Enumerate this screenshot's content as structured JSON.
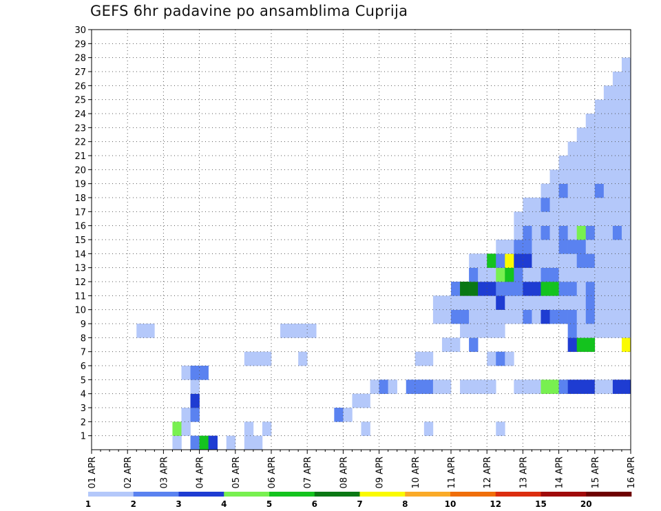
{
  "chart_data": {
    "type": "heatmap",
    "title": "GEFS 6hr padavine po ansamblima Cuprija",
    "xlabel": "",
    "ylabel": "",
    "x_ticks": [
      "01 APR",
      "02 APR",
      "03 APR",
      "04 APR",
      "05 APR",
      "06 APR",
      "07 APR",
      "08 APR",
      "09 APR",
      "10 APR",
      "11 APR",
      "12 APR",
      "13 APR",
      "14 APR",
      "15 APR",
      "16 APR"
    ],
    "y_ticks": [
      1,
      2,
      3,
      4,
      5,
      6,
      7,
      8,
      9,
      10,
      11,
      12,
      13,
      14,
      15,
      16,
      17,
      18,
      19,
      20,
      21,
      22,
      23,
      24,
      25,
      26,
      27,
      28,
      29,
      30
    ],
    "y_range": [
      0,
      30
    ],
    "x_steps_per_day": 4,
    "x_step_count": 60,
    "grid": true,
    "legend": "bottom",
    "levels": [
      1,
      2,
      3,
      4,
      5,
      6,
      7,
      8,
      10,
      12,
      15,
      20
    ],
    "level_labels": [
      "1",
      "2",
      "3",
      "4",
      "5",
      "6",
      "7",
      "8",
      "10",
      "12",
      "15",
      "20"
    ],
    "colors": [
      "#b4c8fa",
      "#5a82f0",
      "#1e3cd2",
      "#78f050",
      "#14c31e",
      "#0a7814",
      "#fafa00",
      "#faaa28",
      "#f06e0a",
      "#dc2d0f",
      "#a00a0a",
      "#6e0000"
    ],
    "cells": [
      [
        9,
        0,
        1
      ],
      [
        11,
        0,
        2
      ],
      [
        12,
        0,
        5
      ],
      [
        13,
        0,
        3
      ],
      [
        15,
        0,
        1
      ],
      [
        17,
        0,
        1
      ],
      [
        18,
        0,
        1
      ],
      [
        9,
        1,
        4
      ],
      [
        10,
        1,
        1
      ],
      [
        10,
        2,
        1
      ],
      [
        11,
        2,
        2
      ],
      [
        11,
        3,
        3
      ],
      [
        11,
        4,
        1
      ],
      [
        17,
        1,
        1
      ],
      [
        19,
        1,
        1
      ],
      [
        30,
        1,
        1
      ],
      [
        37,
        1,
        1
      ],
      [
        45,
        1,
        1
      ],
      [
        27,
        2,
        2
      ],
      [
        28,
        2,
        1
      ],
      [
        29,
        3,
        1
      ],
      [
        30,
        3,
        1
      ],
      [
        31,
        4,
        1
      ],
      [
        32,
        4,
        2
      ],
      [
        33,
        4,
        1
      ],
      [
        35,
        4,
        2
      ],
      [
        36,
        4,
        2
      ],
      [
        37,
        4,
        2
      ],
      [
        38,
        4,
        1
      ],
      [
        39,
        4,
        1
      ],
      [
        41,
        4,
        1
      ],
      [
        42,
        4,
        1
      ],
      [
        43,
        4,
        1
      ],
      [
        44,
        4,
        1
      ],
      [
        47,
        4,
        1
      ],
      [
        48,
        4,
        1
      ],
      [
        49,
        4,
        1
      ],
      [
        50,
        4,
        4
      ],
      [
        51,
        4,
        4
      ],
      [
        52,
        4,
        2
      ],
      [
        53,
        4,
        3
      ],
      [
        54,
        4,
        3
      ],
      [
        55,
        4,
        3
      ],
      [
        56,
        4,
        1
      ],
      [
        57,
        4,
        1
      ],
      [
        58,
        4,
        3
      ],
      [
        59,
        4,
        3
      ],
      [
        10,
        5,
        1
      ],
      [
        11,
        5,
        2
      ],
      [
        12,
        5,
        2
      ],
      [
        17,
        6,
        1
      ],
      [
        18,
        6,
        1
      ],
      [
        19,
        6,
        1
      ],
      [
        23,
        6,
        1
      ],
      [
        36,
        6,
        1
      ],
      [
        37,
        6,
        1
      ],
      [
        44,
        6,
        1
      ],
      [
        45,
        6,
        2
      ],
      [
        46,
        6,
        1
      ],
      [
        39,
        7,
        1
      ],
      [
        40,
        7,
        1
      ],
      [
        42,
        7,
        2
      ],
      [
        53,
        7,
        3
      ],
      [
        54,
        7,
        5
      ],
      [
        55,
        7,
        5
      ],
      [
        59,
        7,
        7
      ],
      [
        5,
        8,
        1
      ],
      [
        6,
        8,
        1
      ],
      [
        21,
        8,
        1
      ],
      [
        22,
        8,
        1
      ],
      [
        23,
        8,
        1
      ],
      [
        24,
        8,
        1
      ],
      [
        41,
        8,
        1
      ],
      [
        42,
        8,
        1
      ],
      [
        43,
        8,
        1
      ],
      [
        44,
        8,
        1
      ],
      [
        45,
        8,
        1
      ],
      [
        53,
        8,
        2
      ],
      [
        54,
        8,
        1
      ],
      [
        55,
        8,
        1
      ],
      [
        56,
        8,
        1
      ],
      [
        57,
        8,
        1
      ],
      [
        58,
        8,
        1
      ],
      [
        59,
        8,
        1
      ],
      [
        38,
        9,
        1
      ],
      [
        39,
        9,
        1
      ],
      [
        40,
        9,
        2
      ],
      [
        41,
        9,
        2
      ],
      [
        42,
        9,
        1
      ],
      [
        43,
        9,
        1
      ],
      [
        44,
        9,
        1
      ],
      [
        45,
        9,
        1
      ],
      [
        46,
        9,
        1
      ],
      [
        47,
        9,
        1
      ],
      [
        48,
        9,
        2
      ],
      [
        49,
        9,
        1
      ],
      [
        50,
        9,
        3
      ],
      [
        51,
        9,
        2
      ],
      [
        52,
        9,
        2
      ],
      [
        53,
        9,
        2
      ],
      [
        54,
        9,
        1
      ],
      [
        55,
        9,
        2
      ],
      [
        56,
        9,
        1
      ],
      [
        57,
        9,
        1
      ],
      [
        58,
        9,
        1
      ],
      [
        59,
        9,
        1
      ],
      [
        38,
        10,
        1
      ],
      [
        39,
        10,
        1
      ],
      [
        40,
        10,
        1
      ],
      [
        41,
        10,
        1
      ],
      [
        42,
        10,
        1
      ],
      [
        43,
        10,
        1
      ],
      [
        44,
        10,
        1
      ],
      [
        45,
        10,
        3
      ],
      [
        46,
        10,
        1
      ],
      [
        47,
        10,
        1
      ],
      [
        48,
        10,
        1
      ],
      [
        49,
        10,
        1
      ],
      [
        50,
        10,
        1
      ],
      [
        51,
        10,
        1
      ],
      [
        52,
        10,
        1
      ],
      [
        53,
        10,
        1
      ],
      [
        54,
        10,
        1
      ],
      [
        55,
        10,
        2
      ],
      [
        56,
        10,
        1
      ],
      [
        57,
        10,
        1
      ],
      [
        58,
        10,
        1
      ],
      [
        59,
        10,
        1
      ],
      [
        40,
        11,
        2
      ],
      [
        41,
        11,
        6
      ],
      [
        42,
        11,
        6
      ],
      [
        43,
        11,
        3
      ],
      [
        44,
        11,
        3
      ],
      [
        45,
        11,
        2
      ],
      [
        46,
        11,
        2
      ],
      [
        47,
        11,
        2
      ],
      [
        48,
        11,
        3
      ],
      [
        49,
        11,
        3
      ],
      [
        50,
        11,
        5
      ],
      [
        51,
        11,
        5
      ],
      [
        52,
        11,
        2
      ],
      [
        53,
        11,
        2
      ],
      [
        54,
        11,
        1
      ],
      [
        55,
        11,
        2
      ],
      [
        56,
        11,
        1
      ],
      [
        57,
        11,
        1
      ],
      [
        58,
        11,
        1
      ],
      [
        59,
        11,
        1
      ],
      [
        42,
        12,
        2
      ],
      [
        43,
        12,
        1
      ],
      [
        44,
        12,
        1
      ],
      [
        45,
        12,
        4
      ],
      [
        46,
        12,
        5
      ],
      [
        47,
        12,
        2
      ],
      [
        48,
        12,
        1
      ],
      [
        49,
        12,
        1
      ],
      [
        50,
        12,
        2
      ],
      [
        51,
        12,
        2
      ],
      [
        52,
        12,
        1
      ],
      [
        53,
        12,
        1
      ],
      [
        54,
        12,
        1
      ],
      [
        55,
        12,
        1
      ],
      [
        56,
        12,
        1
      ],
      [
        57,
        12,
        1
      ],
      [
        58,
        12,
        1
      ],
      [
        59,
        12,
        1
      ],
      [
        42,
        13,
        1
      ],
      [
        43,
        13,
        1
      ],
      [
        44,
        13,
        5
      ],
      [
        45,
        13,
        2
      ],
      [
        46,
        13,
        7
      ],
      [
        47,
        13,
        3
      ],
      [
        48,
        13,
        3
      ],
      [
        49,
        13,
        1
      ],
      [
        50,
        13,
        1
      ],
      [
        51,
        13,
        1
      ],
      [
        52,
        13,
        1
      ],
      [
        53,
        13,
        1
      ],
      [
        54,
        13,
        2
      ],
      [
        55,
        13,
        2
      ],
      [
        56,
        13,
        1
      ],
      [
        57,
        13,
        1
      ],
      [
        58,
        13,
        1
      ],
      [
        59,
        13,
        1
      ],
      [
        45,
        14,
        1
      ],
      [
        46,
        14,
        1
      ],
      [
        47,
        14,
        2
      ],
      [
        48,
        14,
        2
      ],
      [
        49,
        14,
        1
      ],
      [
        50,
        14,
        1
      ],
      [
        51,
        14,
        1
      ],
      [
        52,
        14,
        2
      ],
      [
        53,
        14,
        2
      ],
      [
        54,
        14,
        2
      ],
      [
        55,
        14,
        1
      ],
      [
        56,
        14,
        1
      ],
      [
        57,
        14,
        1
      ],
      [
        58,
        14,
        1
      ],
      [
        59,
        14,
        1
      ],
      [
        47,
        15,
        1
      ],
      [
        48,
        15,
        2
      ],
      [
        49,
        15,
        1
      ],
      [
        50,
        15,
        2
      ],
      [
        51,
        15,
        1
      ],
      [
        52,
        15,
        2
      ],
      [
        53,
        15,
        1
      ],
      [
        54,
        15,
        4
      ],
      [
        55,
        15,
        2
      ],
      [
        56,
        15,
        1
      ],
      [
        57,
        15,
        1
      ],
      [
        58,
        15,
        2
      ],
      [
        59,
        15,
        1
      ],
      [
        47,
        16,
        1
      ],
      [
        48,
        16,
        1
      ],
      [
        49,
        16,
        1
      ],
      [
        50,
        16,
        1
      ],
      [
        51,
        16,
        1
      ],
      [
        52,
        16,
        1
      ],
      [
        53,
        16,
        1
      ],
      [
        54,
        16,
        1
      ],
      [
        55,
        16,
        1
      ],
      [
        56,
        16,
        1
      ],
      [
        57,
        16,
        1
      ],
      [
        58,
        16,
        1
      ],
      [
        59,
        16,
        1
      ],
      [
        48,
        17,
        1
      ],
      [
        49,
        17,
        1
      ],
      [
        50,
        17,
        2
      ],
      [
        51,
        17,
        1
      ],
      [
        52,
        17,
        1
      ],
      [
        53,
        17,
        1
      ],
      [
        54,
        17,
        1
      ],
      [
        55,
        17,
        1
      ],
      [
        56,
        17,
        1
      ],
      [
        57,
        17,
        1
      ],
      [
        58,
        17,
        1
      ],
      [
        59,
        17,
        1
      ],
      [
        50,
        18,
        1
      ],
      [
        51,
        18,
        1
      ],
      [
        52,
        18,
        2
      ],
      [
        53,
        18,
        1
      ],
      [
        54,
        18,
        1
      ],
      [
        55,
        18,
        1
      ],
      [
        56,
        18,
        2
      ],
      [
        57,
        18,
        1
      ],
      [
        58,
        18,
        1
      ],
      [
        59,
        18,
        1
      ],
      [
        51,
        19,
        1
      ],
      [
        52,
        19,
        1
      ],
      [
        53,
        19,
        1
      ],
      [
        54,
        19,
        1
      ],
      [
        55,
        19,
        1
      ],
      [
        56,
        19,
        1
      ],
      [
        57,
        19,
        1
      ],
      [
        58,
        19,
        1
      ],
      [
        59,
        19,
        1
      ],
      [
        52,
        20,
        1
      ],
      [
        53,
        20,
        1
      ],
      [
        54,
        20,
        1
      ],
      [
        55,
        20,
        1
      ],
      [
        56,
        20,
        1
      ],
      [
        57,
        20,
        1
      ],
      [
        58,
        20,
        1
      ],
      [
        59,
        20,
        1
      ],
      [
        53,
        21,
        1
      ],
      [
        54,
        21,
        1
      ],
      [
        55,
        21,
        1
      ],
      [
        56,
        21,
        1
      ],
      [
        57,
        21,
        1
      ],
      [
        58,
        21,
        1
      ],
      [
        59,
        21,
        1
      ],
      [
        54,
        22,
        1
      ],
      [
        55,
        22,
        1
      ],
      [
        56,
        22,
        1
      ],
      [
        57,
        22,
        1
      ],
      [
        58,
        22,
        1
      ],
      [
        59,
        22,
        1
      ],
      [
        55,
        23,
        1
      ],
      [
        56,
        23,
        1
      ],
      [
        57,
        23,
        1
      ],
      [
        58,
        23,
        1
      ],
      [
        59,
        23,
        1
      ],
      [
        56,
        24,
        1
      ],
      [
        57,
        24,
        1
      ],
      [
        58,
        24,
        1
      ],
      [
        59,
        24,
        1
      ],
      [
        57,
        25,
        1
      ],
      [
        58,
        25,
        1
      ],
      [
        59,
        25,
        1
      ],
      [
        58,
        26,
        1
      ],
      [
        59,
        26,
        1
      ],
      [
        59,
        27,
        1
      ]
    ]
  }
}
